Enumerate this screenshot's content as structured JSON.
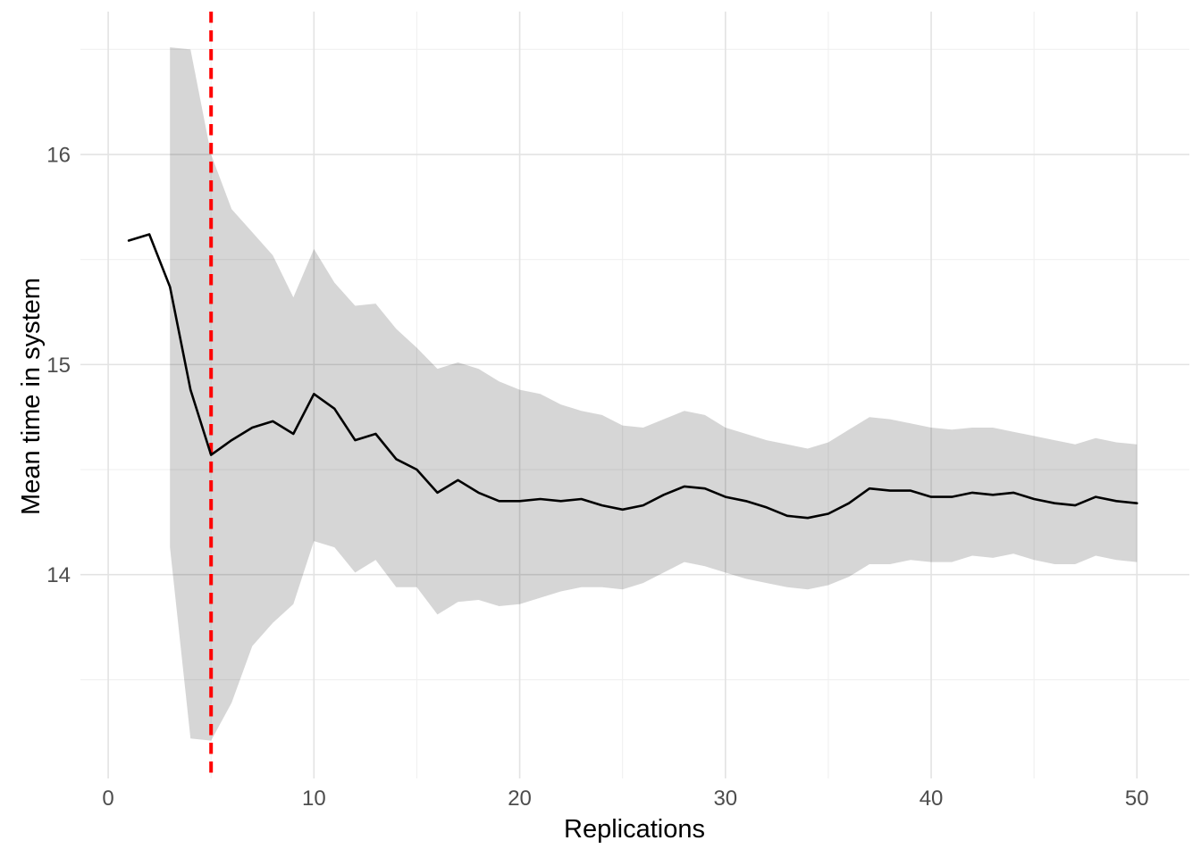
{
  "chart_data": {
    "type": "line",
    "title": "",
    "xlabel": "Replications",
    "ylabel": "Mean time in system",
    "xlim": [
      -1.35,
      52.55
    ],
    "ylim": [
      13.03,
      16.68
    ],
    "grid": true,
    "legend": "none",
    "x_ticks": {
      "major": [
        0,
        10,
        20,
        30,
        40,
        50
      ],
      "minor": [
        5,
        15,
        25,
        35,
        45
      ]
    },
    "y_ticks": {
      "major": [
        14,
        15,
        16
      ],
      "minor": [
        13.5,
        14.5,
        15.5,
        16.5
      ]
    },
    "x": [
      1,
      2,
      3,
      4,
      5,
      6,
      7,
      8,
      9,
      10,
      11,
      12,
      13,
      14,
      15,
      16,
      17,
      18,
      19,
      20,
      21,
      22,
      23,
      24,
      25,
      26,
      27,
      28,
      29,
      30,
      31,
      32,
      33,
      34,
      35,
      36,
      37,
      38,
      39,
      40,
      41,
      42,
      43,
      44,
      45,
      46,
      47,
      48,
      49,
      50
    ],
    "series": [
      {
        "name": "cumulative-mean",
        "color": "#000000",
        "width": 2.6,
        "values": [
          15.59,
          15.62,
          15.37,
          14.88,
          14.57,
          14.64,
          14.7,
          14.73,
          14.67,
          14.86,
          14.79,
          14.64,
          14.67,
          14.55,
          14.5,
          14.39,
          14.45,
          14.39,
          14.35,
          14.35,
          14.36,
          14.35,
          14.36,
          14.33,
          14.31,
          14.33,
          14.38,
          14.42,
          14.41,
          14.37,
          14.35,
          14.32,
          14.28,
          14.27,
          14.29,
          14.34,
          14.41,
          14.4,
          14.4,
          14.37,
          14.37,
          14.39,
          14.38,
          14.39,
          14.36,
          14.34,
          14.33,
          14.37,
          14.35,
          14.34
        ]
      }
    ],
    "ribbon": {
      "name": "confidence-interval",
      "fill": "rgba(0,0,0,0.16)",
      "x": [
        3,
        4,
        5,
        6,
        7,
        8,
        9,
        10,
        11,
        12,
        13,
        14,
        15,
        16,
        17,
        18,
        19,
        20,
        21,
        22,
        23,
        24,
        25,
        26,
        27,
        28,
        29,
        30,
        31,
        32,
        33,
        34,
        35,
        36,
        37,
        38,
        39,
        40,
        41,
        42,
        43,
        44,
        45,
        46,
        47,
        48,
        49,
        50
      ],
      "upper": [
        16.51,
        16.5,
        16.0,
        15.74,
        15.63,
        15.52,
        15.32,
        15.55,
        15.39,
        15.28,
        15.29,
        15.17,
        15.08,
        14.98,
        15.01,
        14.98,
        14.92,
        14.88,
        14.86,
        14.81,
        14.78,
        14.76,
        14.71,
        14.7,
        14.74,
        14.78,
        14.76,
        14.7,
        14.67,
        14.64,
        14.62,
        14.6,
        14.63,
        14.69,
        14.75,
        14.74,
        14.72,
        14.7,
        14.69,
        14.7,
        14.7,
        14.68,
        14.66,
        14.64,
        14.62,
        14.65,
        14.63,
        14.62
      ],
      "lower": [
        14.13,
        13.22,
        13.21,
        13.39,
        13.66,
        13.77,
        13.86,
        14.16,
        14.13,
        14.01,
        14.07,
        13.94,
        13.94,
        13.81,
        13.87,
        13.88,
        13.85,
        13.86,
        13.89,
        13.92,
        13.94,
        13.94,
        13.93,
        13.96,
        14.01,
        14.06,
        14.04,
        14.01,
        13.98,
        13.96,
        13.94,
        13.93,
        13.95,
        13.99,
        14.05,
        14.05,
        14.07,
        14.06,
        14.06,
        14.09,
        14.08,
        14.1,
        14.07,
        14.05,
        14.05,
        14.09,
        14.07,
        14.06
      ]
    },
    "vline": {
      "x": 5,
      "color": "#FF0000",
      "linetype": "dashed",
      "width": 4,
      "dash": [
        12.5,
        8.5
      ]
    },
    "colors": {
      "background": "#FFFFFF",
      "grid_major": "#E3E3E3",
      "grid_minor": "#F0F0F0",
      "axis_text": "#4D4D4D",
      "axis_title": "#000000"
    }
  }
}
